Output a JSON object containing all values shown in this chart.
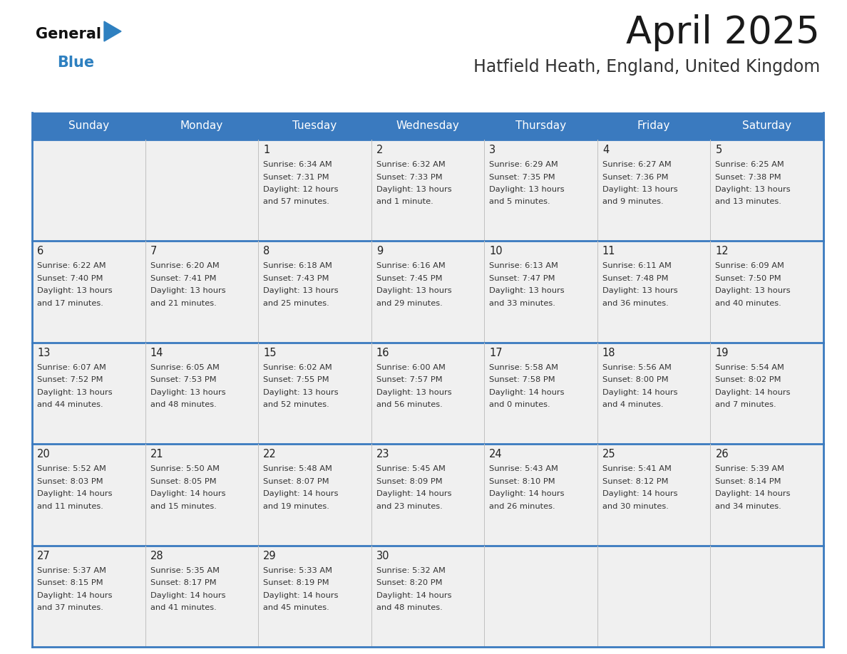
{
  "title": "April 2025",
  "subtitle": "Hatfield Heath, England, United Kingdom",
  "days_of_week": [
    "Sunday",
    "Monday",
    "Tuesday",
    "Wednesday",
    "Thursday",
    "Friday",
    "Saturday"
  ],
  "header_bg_color": "#3a7abf",
  "header_text_color": "#ffffff",
  "cell_bg_odd": "#f0f0f0",
  "cell_bg_even": "#f8f8f8",
  "day_number_color": "#222222",
  "info_text_color": "#333333",
  "border_color": "#3a7abf",
  "title_color": "#1a1a1a",
  "subtitle_color": "#333333",
  "logo_general_color": "#111111",
  "logo_blue_color": "#2e80c0",
  "weeks": [
    [
      {
        "date": "",
        "sunrise": "",
        "sunset": "",
        "daylight": ""
      },
      {
        "date": "",
        "sunrise": "",
        "sunset": "",
        "daylight": ""
      },
      {
        "date": "1",
        "sunrise": "6:34 AM",
        "sunset": "7:31 PM",
        "daylight": "12 hours and 57 minutes."
      },
      {
        "date": "2",
        "sunrise": "6:32 AM",
        "sunset": "7:33 PM",
        "daylight": "13 hours and 1 minute."
      },
      {
        "date": "3",
        "sunrise": "6:29 AM",
        "sunset": "7:35 PM",
        "daylight": "13 hours and 5 minutes."
      },
      {
        "date": "4",
        "sunrise": "6:27 AM",
        "sunset": "7:36 PM",
        "daylight": "13 hours and 9 minutes."
      },
      {
        "date": "5",
        "sunrise": "6:25 AM",
        "sunset": "7:38 PM",
        "daylight": "13 hours and 13 minutes."
      }
    ],
    [
      {
        "date": "6",
        "sunrise": "6:22 AM",
        "sunset": "7:40 PM",
        "daylight": "13 hours and 17 minutes."
      },
      {
        "date": "7",
        "sunrise": "6:20 AM",
        "sunset": "7:41 PM",
        "daylight": "13 hours and 21 minutes."
      },
      {
        "date": "8",
        "sunrise": "6:18 AM",
        "sunset": "7:43 PM",
        "daylight": "13 hours and 25 minutes."
      },
      {
        "date": "9",
        "sunrise": "6:16 AM",
        "sunset": "7:45 PM",
        "daylight": "13 hours and 29 minutes."
      },
      {
        "date": "10",
        "sunrise": "6:13 AM",
        "sunset": "7:47 PM",
        "daylight": "13 hours and 33 minutes."
      },
      {
        "date": "11",
        "sunrise": "6:11 AM",
        "sunset": "7:48 PM",
        "daylight": "13 hours and 36 minutes."
      },
      {
        "date": "12",
        "sunrise": "6:09 AM",
        "sunset": "7:50 PM",
        "daylight": "13 hours and 40 minutes."
      }
    ],
    [
      {
        "date": "13",
        "sunrise": "6:07 AM",
        "sunset": "7:52 PM",
        "daylight": "13 hours and 44 minutes."
      },
      {
        "date": "14",
        "sunrise": "6:05 AM",
        "sunset": "7:53 PM",
        "daylight": "13 hours and 48 minutes."
      },
      {
        "date": "15",
        "sunrise": "6:02 AM",
        "sunset": "7:55 PM",
        "daylight": "13 hours and 52 minutes."
      },
      {
        "date": "16",
        "sunrise": "6:00 AM",
        "sunset": "7:57 PM",
        "daylight": "13 hours and 56 minutes."
      },
      {
        "date": "17",
        "sunrise": "5:58 AM",
        "sunset": "7:58 PM",
        "daylight": "14 hours and 0 minutes."
      },
      {
        "date": "18",
        "sunrise": "5:56 AM",
        "sunset": "8:00 PM",
        "daylight": "14 hours and 4 minutes."
      },
      {
        "date": "19",
        "sunrise": "5:54 AM",
        "sunset": "8:02 PM",
        "daylight": "14 hours and 7 minutes."
      }
    ],
    [
      {
        "date": "20",
        "sunrise": "5:52 AM",
        "sunset": "8:03 PM",
        "daylight": "14 hours and 11 minutes."
      },
      {
        "date": "21",
        "sunrise": "5:50 AM",
        "sunset": "8:05 PM",
        "daylight": "14 hours and 15 minutes."
      },
      {
        "date": "22",
        "sunrise": "5:48 AM",
        "sunset": "8:07 PM",
        "daylight": "14 hours and 19 minutes."
      },
      {
        "date": "23",
        "sunrise": "5:45 AM",
        "sunset": "8:09 PM",
        "daylight": "14 hours and 23 minutes."
      },
      {
        "date": "24",
        "sunrise": "5:43 AM",
        "sunset": "8:10 PM",
        "daylight": "14 hours and 26 minutes."
      },
      {
        "date": "25",
        "sunrise": "5:41 AM",
        "sunset": "8:12 PM",
        "daylight": "14 hours and 30 minutes."
      },
      {
        "date": "26",
        "sunrise": "5:39 AM",
        "sunset": "8:14 PM",
        "daylight": "14 hours and 34 minutes."
      }
    ],
    [
      {
        "date": "27",
        "sunrise": "5:37 AM",
        "sunset": "8:15 PM",
        "daylight": "14 hours and 37 minutes."
      },
      {
        "date": "28",
        "sunrise": "5:35 AM",
        "sunset": "8:17 PM",
        "daylight": "14 hours and 41 minutes."
      },
      {
        "date": "29",
        "sunrise": "5:33 AM",
        "sunset": "8:19 PM",
        "daylight": "14 hours and 45 minutes."
      },
      {
        "date": "30",
        "sunrise": "5:32 AM",
        "sunset": "8:20 PM",
        "daylight": "14 hours and 48 minutes."
      },
      {
        "date": "",
        "sunrise": "",
        "sunset": "",
        "daylight": ""
      },
      {
        "date": "",
        "sunrise": "",
        "sunset": "",
        "daylight": ""
      },
      {
        "date": "",
        "sunrise": "",
        "sunset": "",
        "daylight": ""
      }
    ]
  ]
}
